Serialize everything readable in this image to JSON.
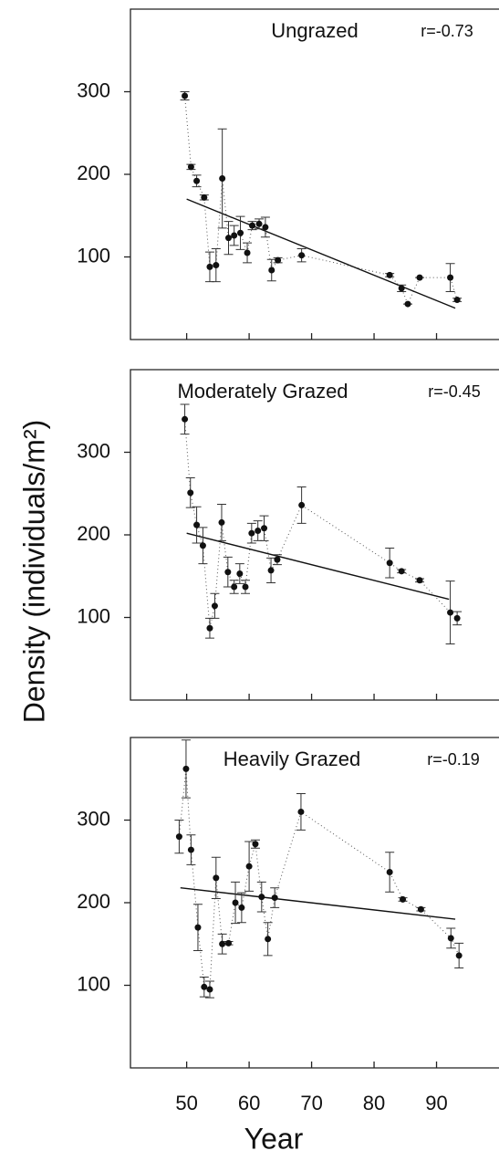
{
  "chart_data": [
    {
      "type": "scatter",
      "title": "Ungrazed",
      "annotation": "r=-0.73",
      "x": [
        49.7,
        50.7,
        51.6,
        52.8,
        53.7,
        54.7,
        55.7,
        56.7,
        57.6,
        58.6,
        59.7,
        60.5,
        61.6,
        62.6,
        63.6,
        64.6,
        68.4,
        82.5,
        84.4,
        85.4,
        87.3,
        92.2,
        93.3
      ],
      "values": [
        295,
        209,
        192,
        172,
        88,
        90,
        195,
        123,
        126,
        129,
        105,
        138,
        140,
        136,
        84,
        96,
        102,
        78,
        62,
        43,
        75,
        75,
        48
      ],
      "errors": [
        5,
        3,
        7,
        3,
        18,
        20,
        60,
        20,
        12,
        20,
        12,
        5,
        6,
        12,
        13,
        3,
        8,
        2,
        4,
        0,
        0,
        17,
        2
      ],
      "fit": {
        "x": [
          50,
          93
        ],
        "y": [
          170,
          38
        ]
      },
      "xlim": [
        41,
        100
      ],
      "ylim": [
        0,
        400
      ],
      "yticks": [
        100,
        200,
        300
      ],
      "xticks": [
        50,
        60,
        70,
        80,
        90
      ],
      "xtick_labels": false,
      "color": "#111111"
    },
    {
      "type": "scatter",
      "title": "Moderately Grazed",
      "annotation": "r=-0.45",
      "ylabel": "Density (individuals/m²)",
      "x": [
        49.7,
        50.6,
        51.6,
        52.6,
        53.7,
        54.5,
        55.6,
        56.6,
        57.6,
        58.5,
        59.4,
        60.4,
        61.4,
        62.4,
        63.5,
        64.5,
        68.4,
        82.5,
        84.4,
        87.3,
        92.2,
        93.3
      ],
      "values": [
        340,
        251,
        212,
        187,
        87,
        114,
        215,
        155,
        137,
        153,
        137,
        202,
        205,
        208,
        157,
        170,
        236,
        166,
        156,
        145,
        106,
        99
      ],
      "errors": [
        18,
        18,
        22,
        22,
        12,
        15,
        22,
        18,
        8,
        12,
        8,
        12,
        12,
        15,
        15,
        6,
        22,
        18,
        2,
        2,
        38,
        8
      ],
      "fit": {
        "x": [
          50,
          92
        ],
        "y": [
          202,
          122
        ]
      },
      "xlim": [
        41,
        100
      ],
      "ylim": [
        0,
        400
      ],
      "yticks": [
        100,
        200,
        300
      ],
      "xticks": [
        50,
        60,
        70,
        80,
        90
      ],
      "xtick_labels": false,
      "color": "#111111"
    },
    {
      "type": "scatter",
      "title": "Heavily Grazed",
      "annotation": "r=-0.19",
      "xlabel": "Year",
      "x": [
        48.8,
        49.9,
        50.7,
        51.8,
        52.8,
        53.7,
        54.7,
        55.7,
        56.7,
        57.8,
        58.8,
        60.0,
        61.0,
        62.0,
        63.0,
        64.1,
        68.3,
        82.5,
        84.6,
        87.5,
        92.3,
        93.6
      ],
      "values": [
        280,
        362,
        264,
        170,
        98,
        95,
        230,
        150,
        151,
        200,
        194,
        244,
        271,
        207,
        156,
        206,
        310,
        237,
        204,
        192,
        157,
        136
      ],
      "errors": [
        20,
        35,
        18,
        28,
        12,
        10,
        25,
        12,
        2,
        25,
        18,
        30,
        5,
        18,
        20,
        12,
        22,
        24,
        2,
        2,
        12,
        15
      ],
      "fit": {
        "x": [
          49,
          93
        ],
        "y": [
          218,
          180
        ]
      },
      "xlim": [
        41,
        100
      ],
      "ylim": [
        0,
        400
      ],
      "yticks": [
        100,
        200,
        300
      ],
      "xticks": [
        50,
        60,
        70,
        80,
        90
      ],
      "xtick_labels": true,
      "color": "#111111"
    }
  ]
}
